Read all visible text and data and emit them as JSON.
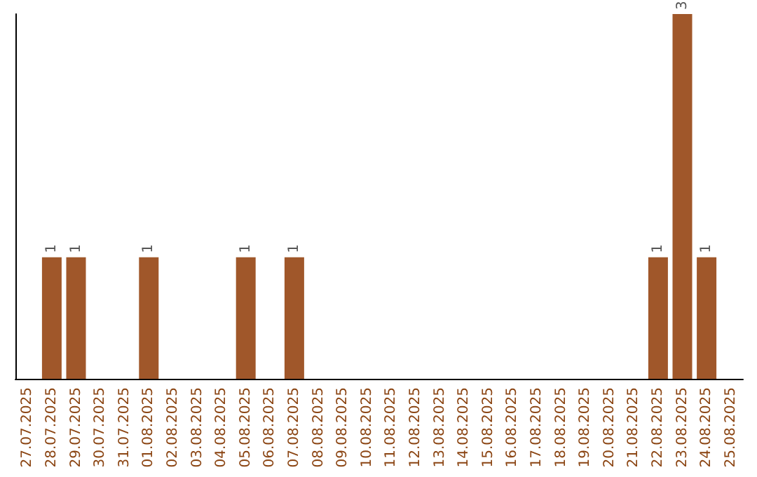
{
  "chart_data": {
    "type": "bar",
    "categories": [
      "27.07.2025",
      "28.07.2025",
      "29.07.2025",
      "30.07.2025",
      "31.07.2025",
      "01.08.2025",
      "02.08.2025",
      "03.08.2025",
      "04.08.2025",
      "05.08.2025",
      "06.08.2025",
      "07.08.2025",
      "08.08.2025",
      "09.08.2025",
      "10.08.2025",
      "11.08.2025",
      "12.08.2025",
      "13.08.2025",
      "14.08.2025",
      "15.08.2025",
      "16.08.2025",
      "17.08.2025",
      "18.08.2025",
      "19.08.2025",
      "20.08.2025",
      "21.08.2025",
      "22.08.2025",
      "23.08.2025",
      "24.08.2025",
      "25.08.2025"
    ],
    "values": [
      0,
      1,
      1,
      0,
      0,
      1,
      0,
      0,
      0,
      1,
      0,
      1,
      0,
      0,
      0,
      0,
      0,
      0,
      0,
      0,
      0,
      0,
      0,
      0,
      0,
      0,
      1,
      3,
      1,
      0
    ],
    "value_labels": [
      null,
      "1",
      "1",
      null,
      null,
      "1",
      null,
      null,
      null,
      "1",
      null,
      "1",
      null,
      null,
      null,
      null,
      null,
      null,
      null,
      null,
      null,
      null,
      null,
      null,
      null,
      null,
      "1",
      "3",
      "1",
      null
    ],
    "color": "#a0572a",
    "grid": false,
    "tick_labels": "x"
  }
}
